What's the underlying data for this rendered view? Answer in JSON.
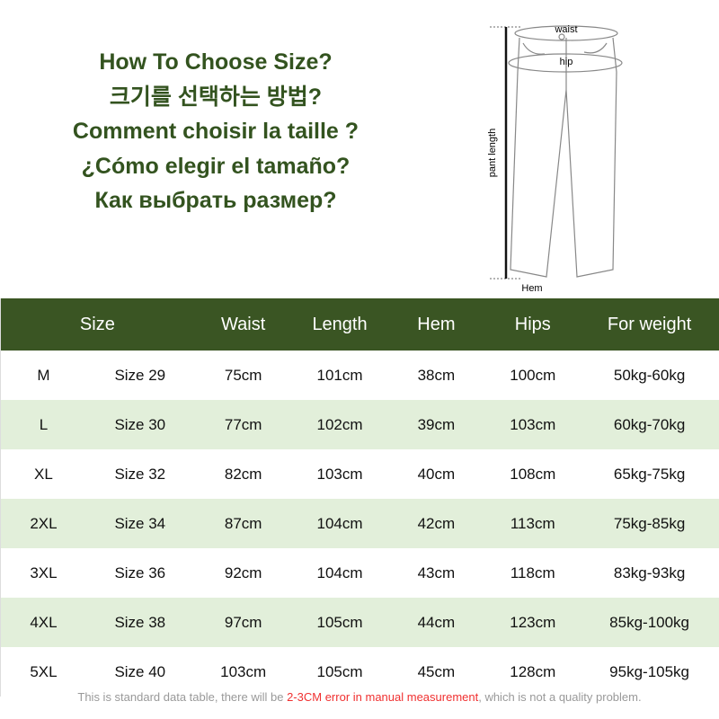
{
  "titles": [
    "How To Choose Size?",
    "크기를 선택하는 방법?",
    "Comment choisir la taille ?",
    "¿Cómo elegir el tamaño?",
    "Как выбрать размер?"
  ],
  "diagram": {
    "waist": "waist",
    "hip": "hip",
    "length": "pant length",
    "hem": "Hem"
  },
  "colors": {
    "header_bg": "#3a5523",
    "alt_row": "#e2efda",
    "title": "#33531f",
    "note_highlight": "#f03030"
  },
  "headers": {
    "size": "Size",
    "waist": "Waist",
    "length": "Length",
    "hem": "Hem",
    "hips": "Hips",
    "weight": "For weight"
  },
  "rows": [
    [
      "M",
      "Size 29",
      "75cm",
      "101cm",
      "38cm",
      "100cm",
      "50kg-60kg"
    ],
    [
      "L",
      "Size 30",
      "77cm",
      "102cm",
      "39cm",
      "103cm",
      "60kg-70kg"
    ],
    [
      "XL",
      "Size 32",
      "82cm",
      "103cm",
      "40cm",
      "108cm",
      "65kg-75kg"
    ],
    [
      "2XL",
      "Size 34",
      "87cm",
      "104cm",
      "42cm",
      "113cm",
      "75kg-85kg"
    ],
    [
      "3XL",
      "Size 36",
      "92cm",
      "104cm",
      "43cm",
      "118cm",
      "83kg-93kg"
    ],
    [
      "4XL",
      "Size 38",
      "97cm",
      "105cm",
      "44cm",
      "123cm",
      "85kg-100kg"
    ],
    [
      "5XL",
      "Size 40",
      "103cm",
      "105cm",
      "45cm",
      "128cm",
      "95kg-105kg"
    ]
  ],
  "note": {
    "before": "This is standard data table, there will be ",
    "highlight": "2-3CM error in manual measurement",
    "after": ", which is not a quality problem."
  }
}
